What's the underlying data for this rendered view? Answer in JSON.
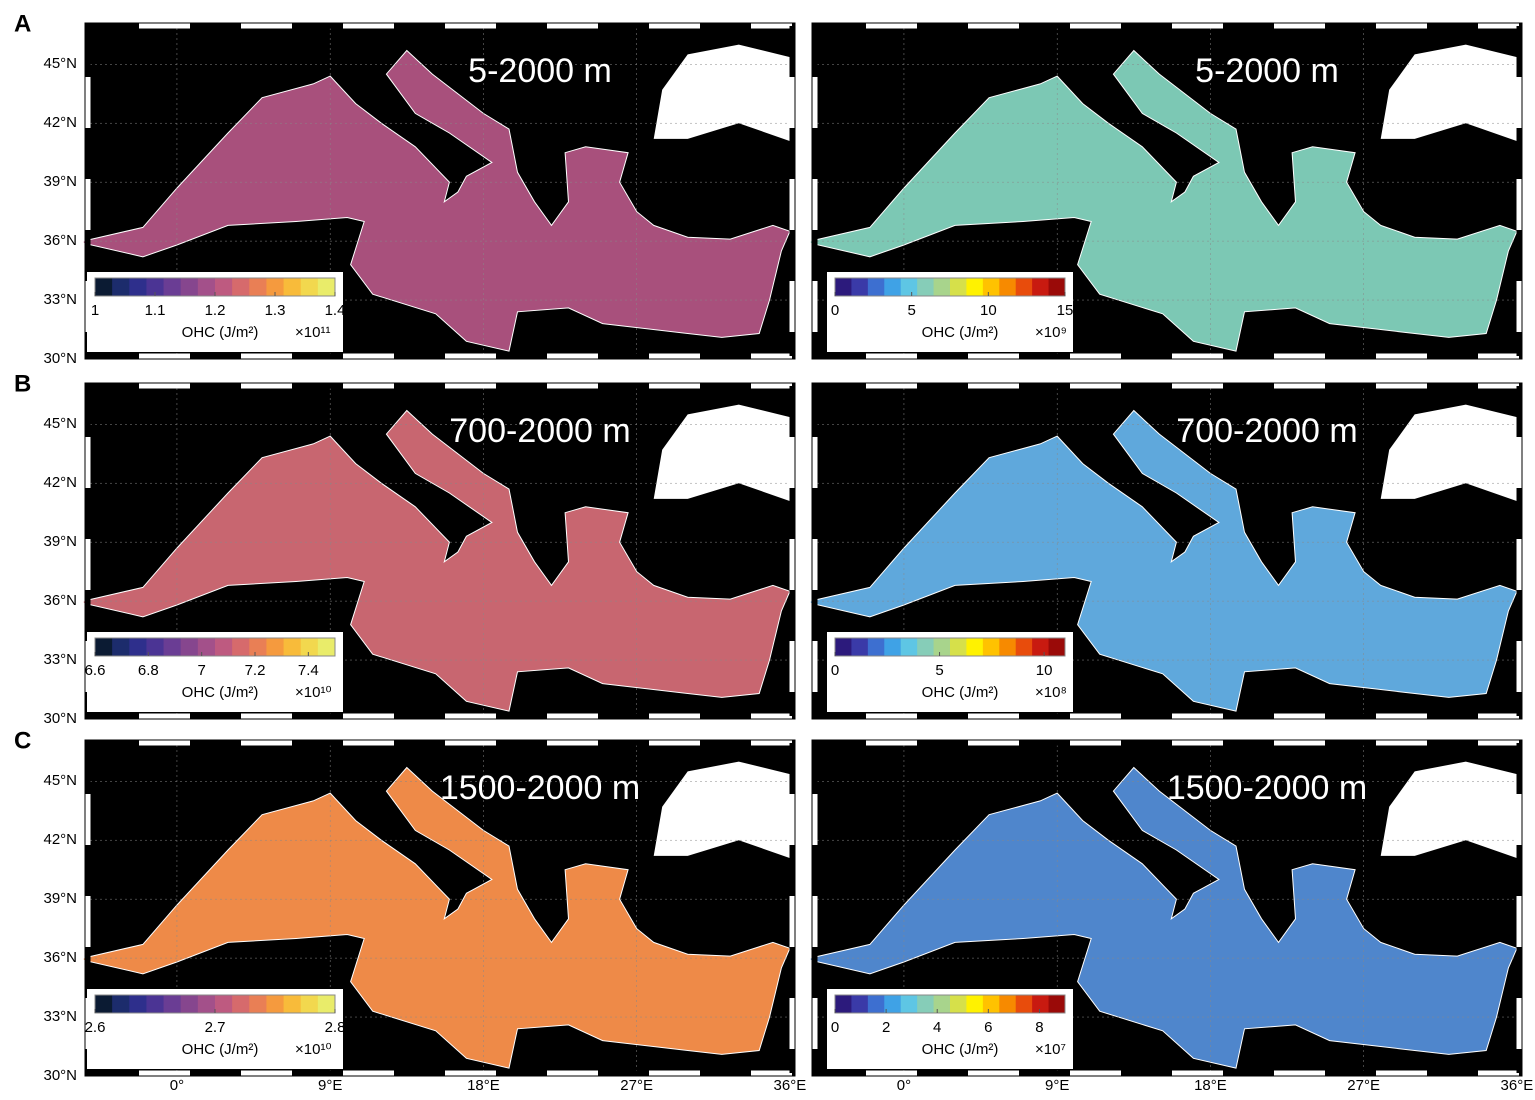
{
  "lon_range": [
    -5.4,
    36.3
  ],
  "lat_range": [
    30,
    47.1
  ],
  "lat_ticks": [
    {
      "value": 45,
      "label": "45°N"
    },
    {
      "value": 42,
      "label": "42°N"
    },
    {
      "value": 39,
      "label": "39°N"
    },
    {
      "value": 36,
      "label": "36°N"
    },
    {
      "value": 33,
      "label": "33°N"
    },
    {
      "value": 30,
      "label": "30°N"
    }
  ],
  "lon_ticks": [
    {
      "value": 0,
      "label": "0°"
    },
    {
      "value": 9,
      "label": "9°E"
    },
    {
      "value": 18,
      "label": "18°E"
    },
    {
      "value": 27,
      "label": "27°E"
    },
    {
      "value": 36,
      "label": "36°E"
    }
  ],
  "panels": [
    {
      "label": "A",
      "maps": [
        {
          "title": "5-2000 m",
          "color": "#a8507c",
          "colormap": [
            "#0b1b33",
            "#1c2c6c",
            "#2e2f8c",
            "#4b3494",
            "#6a3d94",
            "#86468e",
            "#a3508a",
            "#be5a80",
            "#d66a6c",
            "#e97f55",
            "#f59a3e",
            "#f8bb3a",
            "#f2d84e",
            "#e9ec6a"
          ],
          "clim": [
            1,
            1.4
          ],
          "ticks": [
            1,
            1.1,
            1.2,
            1.3,
            1.4
          ],
          "cbar_label": "OHC (J/m²)",
          "scale_label": "×10¹¹"
        },
        {
          "title": "5-2000 m",
          "color": "#7cc8b4",
          "colormap": [
            "#2c1a7c",
            "#3a3aa8",
            "#3d6fd0",
            "#3fa2e6",
            "#5ec6e4",
            "#86cdb8",
            "#a8d48c",
            "#d6e04a",
            "#fff200",
            "#ffc200",
            "#f78a00",
            "#e84c0c",
            "#c81a10",
            "#9a0a08"
          ],
          "clim": [
            0,
            15
          ],
          "ticks": [
            0,
            5,
            10,
            15
          ],
          "cbar_label": "OHC (J/m²)",
          "scale_label": "×10⁹"
        }
      ]
    },
    {
      "label": "B",
      "maps": [
        {
          "title": "700-2000 m",
          "color": "#c86670",
          "colormap": [
            "#0b1b33",
            "#1c2c6c",
            "#2e2f8c",
            "#4b3494",
            "#6a3d94",
            "#86468e",
            "#a3508a",
            "#be5a80",
            "#d66a6c",
            "#e97f55",
            "#f59a3e",
            "#f8bb3a",
            "#f2d84e",
            "#e9ec6a"
          ],
          "clim": [
            6.6,
            7.5
          ],
          "ticks": [
            6.6,
            6.8,
            7,
            7.2,
            7.4
          ],
          "cbar_label": "OHC (J/m²)",
          "scale_label": "×10¹⁰"
        },
        {
          "title": "700-2000 m",
          "color": "#5fa8dc",
          "colormap": [
            "#2c1a7c",
            "#3a3aa8",
            "#3d6fd0",
            "#3fa2e6",
            "#5ec6e4",
            "#86cdb8",
            "#a8d48c",
            "#d6e04a",
            "#fff200",
            "#ffc200",
            "#f78a00",
            "#e84c0c",
            "#c81a10",
            "#9a0a08"
          ],
          "clim": [
            0,
            11
          ],
          "ticks": [
            0,
            5,
            10
          ],
          "cbar_label": "OHC (J/m²)",
          "scale_label": "×10⁸"
        }
      ]
    },
    {
      "label": "C",
      "maps": [
        {
          "title": "1500-2000 m",
          "color": "#ee8a48",
          "colormap": [
            "#0b1b33",
            "#1c2c6c",
            "#2e2f8c",
            "#4b3494",
            "#6a3d94",
            "#86468e",
            "#a3508a",
            "#be5a80",
            "#d66a6c",
            "#e97f55",
            "#f59a3e",
            "#f8bb3a",
            "#f2d84e",
            "#e9ec6a"
          ],
          "clim": [
            2.6,
            2.8
          ],
          "ticks": [
            2.6,
            2.7,
            2.8
          ],
          "cbar_label": "OHC (J/m²)",
          "scale_label": "×10¹⁰"
        },
        {
          "title": "1500-2000 m",
          "color": "#4f86cc",
          "colormap": [
            "#2c1a7c",
            "#3a3aa8",
            "#3d6fd0",
            "#3fa2e6",
            "#5ec6e4",
            "#86cdb8",
            "#a8d48c",
            "#d6e04a",
            "#fff200",
            "#ffc200",
            "#f78a00",
            "#e84c0c",
            "#c81a10",
            "#9a0a08"
          ],
          "clim": [
            0,
            9
          ],
          "ticks": [
            0,
            2,
            4,
            6,
            8
          ],
          "cbar_label": "OHC (J/m²)",
          "scale_label": "×10⁷"
        }
      ]
    }
  ]
}
